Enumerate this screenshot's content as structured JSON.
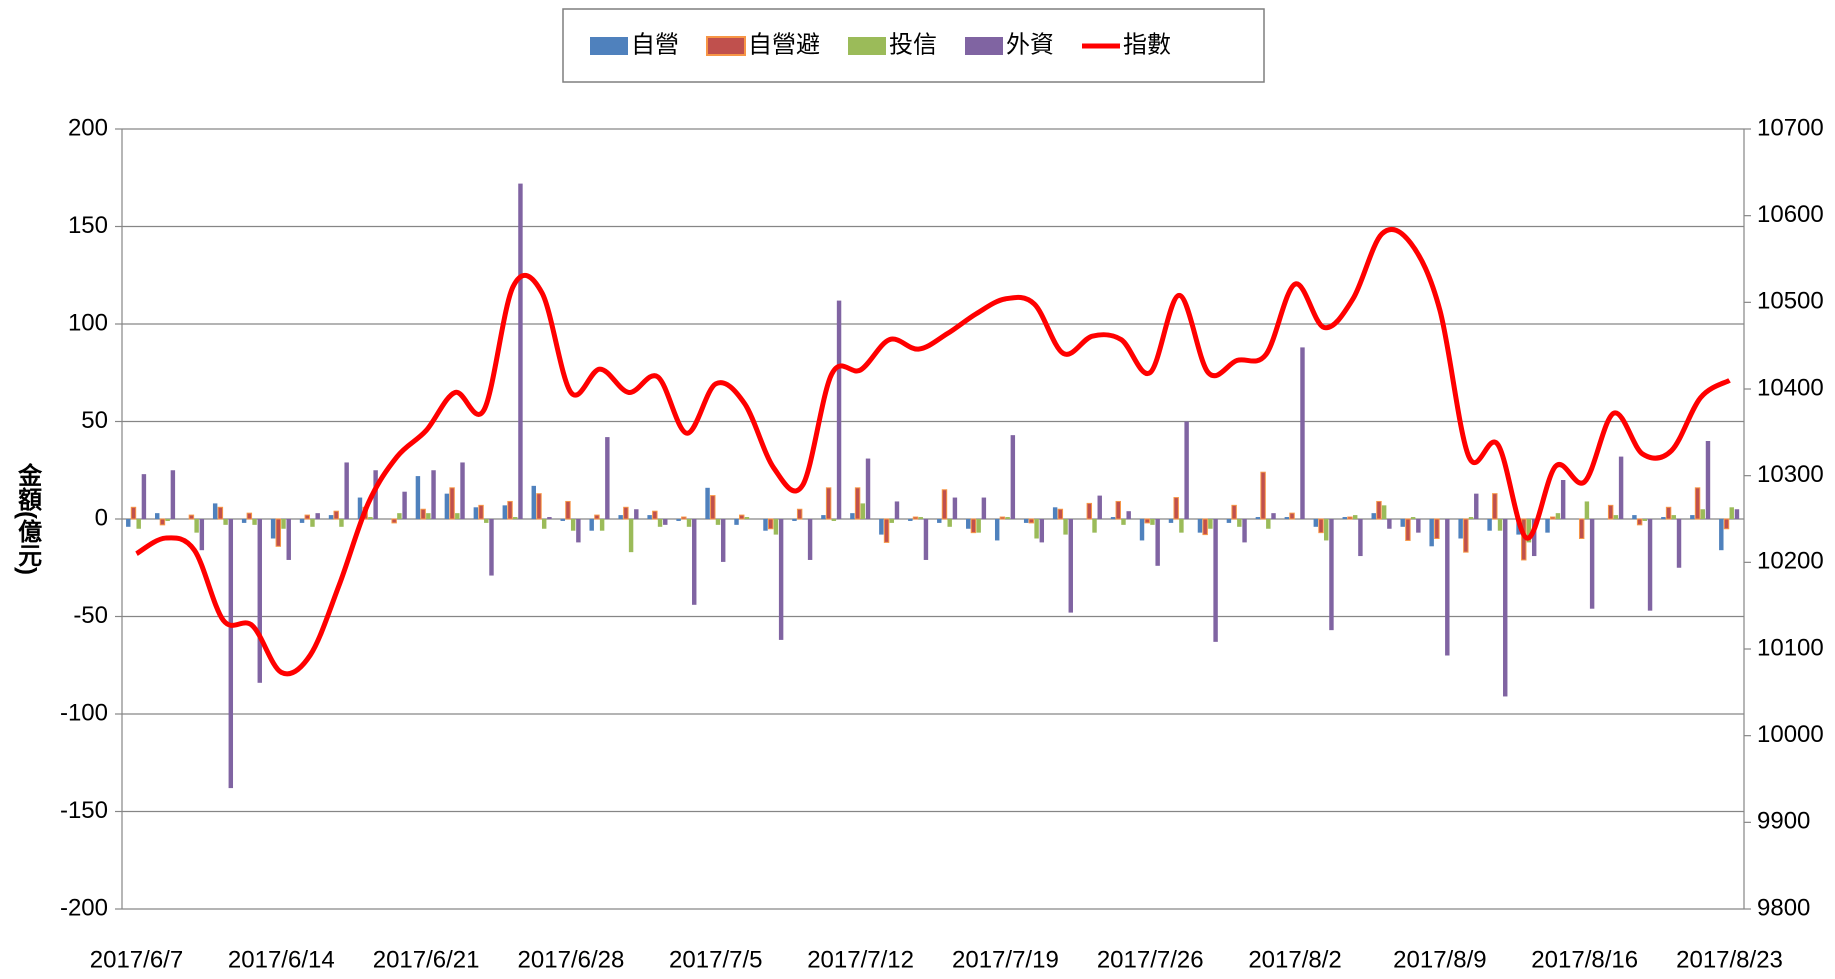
{
  "chart_data": {
    "type": "bar",
    "y_label": "金額(億元)",
    "legend": "top",
    "grid": true,
    "categories": [
      "2017/6/7",
      null,
      null,
      null,
      null,
      "2017/6/14",
      null,
      null,
      null,
      null,
      "2017/6/21",
      null,
      null,
      null,
      null,
      "2017/6/28",
      null,
      null,
      null,
      null,
      "2017/7/5",
      null,
      null,
      null,
      null,
      "2017/7/12",
      null,
      null,
      null,
      null,
      "2017/7/19",
      null,
      null,
      null,
      null,
      "2017/7/26",
      null,
      null,
      null,
      null,
      "2017/8/2",
      null,
      null,
      null,
      null,
      "2017/8/9",
      null,
      null,
      null,
      null,
      "2017/8/16",
      null,
      null,
      null,
      null,
      "2017/8/23"
    ],
    "ylim": [
      -200,
      200
    ],
    "yticks": [
      -200,
      -150,
      -100,
      -50,
      0,
      50,
      100,
      150,
      200
    ],
    "y2lim": [
      9800,
      10700
    ],
    "y2ticks": [
      9800,
      9900,
      10000,
      10100,
      10200,
      10300,
      10400,
      10500,
      10600,
      10700
    ],
    "series": [
      {
        "name": "自營",
        "color": "#4f81bd",
        "values": [
          -4,
          3,
          0,
          8,
          -2,
          -10,
          -2,
          2,
          11,
          0,
          22,
          13,
          6,
          7,
          17,
          -1,
          -6,
          2,
          2,
          -1,
          16,
          -3,
          -6,
          -1,
          2,
          3,
          -8,
          -1,
          -2,
          -5,
          -11,
          -2,
          6,
          0,
          1,
          -11,
          -2,
          -7,
          -2,
          1,
          1,
          -4,
          1,
          3,
          -4,
          -14,
          -10,
          -6,
          -8,
          -7,
          0,
          0,
          2,
          1,
          2,
          -16
        ]
      },
      {
        "name": "自營避",
        "color": "#c0504d",
        "edge_color": "#f79646",
        "values": [
          6,
          -3,
          2,
          6,
          3,
          -14,
          2,
          4,
          6,
          -2,
          5,
          16,
          7,
          9,
          13,
          9,
          2,
          6,
          4,
          1,
          12,
          2,
          -5,
          5,
          16,
          16,
          -12,
          1,
          15,
          -7,
          1,
          -2,
          5,
          8,
          9,
          -2,
          11,
          -8,
          7,
          24,
          3,
          -7,
          1,
          9,
          -11,
          -10,
          -17,
          13,
          -21,
          1,
          -10,
          7,
          -3,
          6,
          16,
          -5
        ]
      },
      {
        "name": "投信",
        "color": "#9bbb59",
        "values": [
          -5,
          -1,
          -7,
          -3,
          -3,
          -5,
          -4,
          -4,
          1,
          3,
          3,
          3,
          -2,
          1,
          -5,
          -6,
          -6,
          -17,
          -4,
          -4,
          -3,
          1,
          -8,
          0,
          -1,
          8,
          -2,
          1,
          -4,
          -7,
          1,
          -10,
          -8,
          -7,
          -3,
          -3,
          -7,
          -5,
          -4,
          -5,
          0,
          -11,
          2,
          7,
          1,
          0,
          1,
          -6,
          -12,
          3,
          9,
          2,
          -1,
          2,
          5,
          6
        ]
      },
      {
        "name": "外資",
        "color": "#8064a2",
        "values": [
          23,
          25,
          -16,
          -138,
          -84,
          -21,
          3,
          29,
          25,
          14,
          25,
          29,
          -29,
          172,
          1,
          -12,
          42,
          5,
          -3,
          -44,
          -22,
          0,
          -62,
          -21,
          112,
          31,
          9,
          -21,
          11,
          11,
          43,
          -12,
          -48,
          12,
          4,
          -24,
          50,
          -63,
          -12,
          3,
          88,
          -57,
          -19,
          -5,
          -7,
          -70,
          13,
          -91,
          -19,
          20,
          -46,
          32,
          -47,
          -25,
          40,
          5
        ]
      },
      {
        "name": "指數",
        "type": "line",
        "axis": "y2",
        "color": "#ff0000",
        "values": [
          10210,
          10228,
          10214,
          10133,
          10127,
          10073,
          10093,
          10174,
          10268,
          10322,
          10352,
          10396,
          10376,
          10518,
          10511,
          10396,
          10423,
          10396,
          10414,
          10349,
          10406,
          10383,
          10309,
          10289,
          10417,
          10422,
          10457,
          10446,
          10464,
          10487,
          10504,
          10498,
          10441,
          10461,
          10457,
          10419,
          10508,
          10419,
          10433,
          10440,
          10521,
          10471,
          10504,
          10579,
          10568,
          10491,
          10322,
          10336,
          10228,
          10311,
          10293,
          10372,
          10325,
          10329,
          10390,
          10410
        ]
      }
    ]
  }
}
